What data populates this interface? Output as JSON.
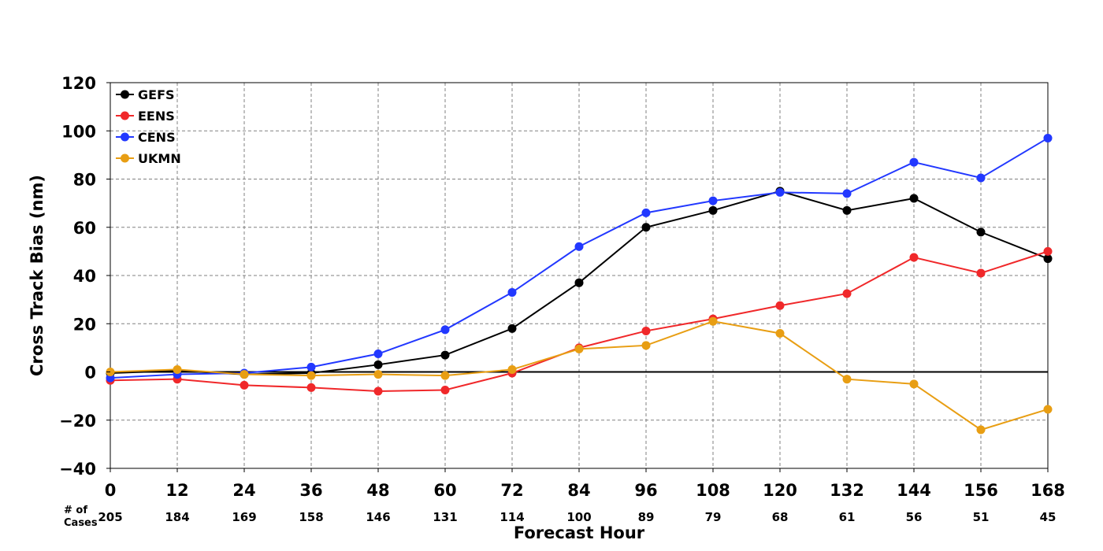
{
  "chart_data": {
    "type": "line",
    "title": "",
    "xlabel": "Forecast Hour",
    "ylabel": "Cross Track Bias (nm)",
    "x": [
      0,
      12,
      24,
      36,
      48,
      60,
      72,
      84,
      96,
      108,
      120,
      132,
      144,
      156,
      168
    ],
    "xlim": [
      0,
      168
    ],
    "ylim": [
      -40,
      120
    ],
    "yticks": [
      -40,
      -20,
      0,
      20,
      40,
      60,
      80,
      100,
      120
    ],
    "grid": true,
    "legend_position": "top-left",
    "cases_label": [
      "# of",
      "Cases"
    ],
    "cases": [
      205,
      184,
      169,
      158,
      146,
      131,
      114,
      100,
      89,
      79,
      68,
      61,
      56,
      51,
      45
    ],
    "series": [
      {
        "name": "GEFS",
        "color": "#000000",
        "values": [
          -0.5,
          0.5,
          -1,
          -0.5,
          3,
          7,
          18,
          37,
          60,
          67,
          75,
          67,
          72,
          58,
          47
        ]
      },
      {
        "name": "EENS",
        "color": "#f0282a",
        "values": [
          -3.5,
          -3,
          -5.5,
          -6.5,
          -8,
          -7.5,
          -0.5,
          10,
          17,
          22,
          27.5,
          32.5,
          47.5,
          41,
          50
        ]
      },
      {
        "name": "CENS",
        "color": "#2238ff",
        "values": [
          -2.5,
          -1,
          -0.5,
          2,
          7.5,
          17.5,
          33,
          52,
          66,
          71,
          74.5,
          74,
          87,
          80.5,
          97
        ]
      },
      {
        "name": "UKMN",
        "color": "#e89e13",
        "values": [
          0,
          1,
          -1,
          -1.5,
          -1,
          -1.5,
          1,
          9.5,
          11,
          21,
          16,
          -3,
          -5,
          -24,
          -15.5
        ]
      }
    ]
  }
}
